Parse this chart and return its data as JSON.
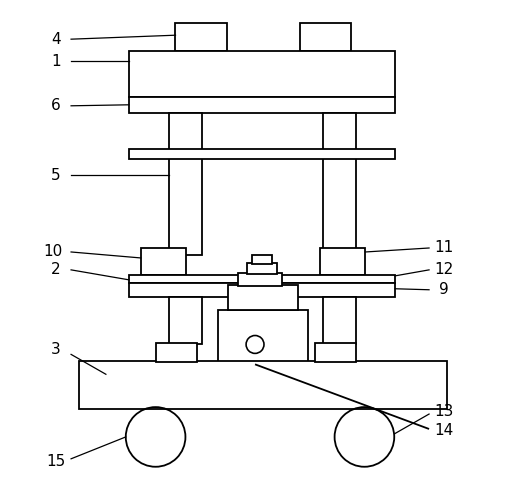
{
  "background_color": "#ffffff",
  "line_color": "#000000",
  "line_width": 1.3,
  "label_fontsize": 11,
  "fig_width": 5.24,
  "fig_height": 4.94,
  "dpi": 100
}
